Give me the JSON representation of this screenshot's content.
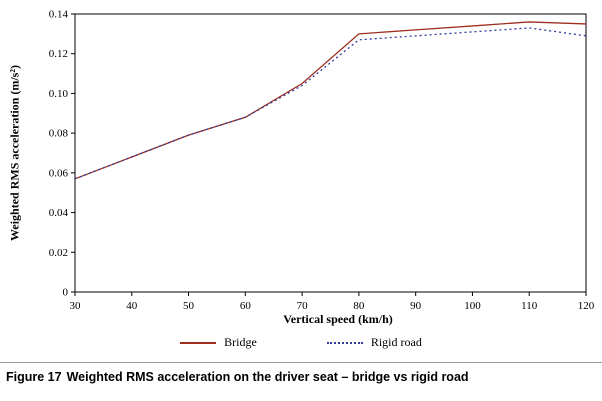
{
  "chart_data": {
    "type": "line",
    "title": "",
    "xlabel": "Vertical speed (km/h)",
    "ylabel": "Weighted RMS acceleration (m/s²)",
    "x": [
      30,
      40,
      50,
      60,
      70,
      80,
      90,
      100,
      110,
      120
    ],
    "xlim": [
      30,
      120
    ],
    "ylim": [
      0,
      0.14
    ],
    "xticks": [
      30,
      40,
      50,
      60,
      70,
      80,
      90,
      100,
      110,
      120
    ],
    "yticks": [
      0,
      0.02,
      0.04,
      0.06,
      0.08,
      0.1,
      0.12,
      0.14
    ],
    "ytick_labels": [
      "0",
      "0.02",
      "0.04",
      "0.06",
      "0.08",
      "0.10",
      "0.12",
      "0.14"
    ],
    "grid": false,
    "legend_position": "bottom",
    "series": [
      {
        "name": "Bridge",
        "color": "#9e2f1f",
        "style": "solid",
        "values": [
          0.057,
          0.068,
          0.079,
          0.088,
          0.105,
          0.13,
          0.132,
          0.134,
          0.136,
          0.135
        ]
      },
      {
        "name": "Rigid road",
        "color": "#2f3c9e",
        "style": "dotted",
        "values": [
          0.057,
          0.068,
          0.079,
          0.088,
          0.104,
          0.127,
          0.129,
          0.131,
          0.133,
          0.129
        ]
      }
    ]
  },
  "caption": {
    "label": "Figure 17",
    "text": "Weighted RMS acceleration on the driver seat – bridge vs rigid road"
  }
}
